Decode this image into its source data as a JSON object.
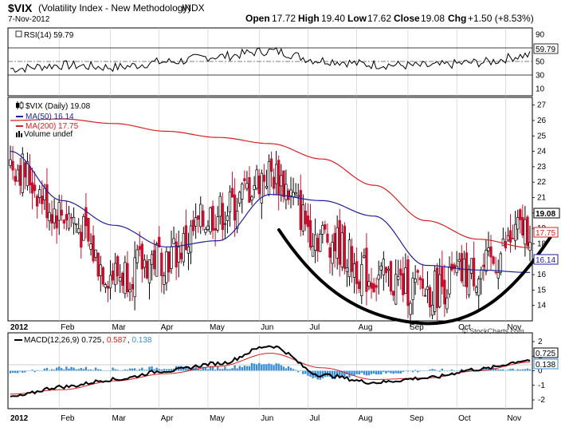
{
  "header": {
    "symbol": "$VIX",
    "name": "(Volatility Index - New Methodology)",
    "exchange": "INDX",
    "date": "7-Nov-2012",
    "quote": {
      "open_label": "Open",
      "open": "17.72",
      "high_label": "High",
      "high": "19.40",
      "low_label": "Low",
      "low": "17.62",
      "close_label": "Close",
      "close": "19.08",
      "chg_label": "Chg",
      "chg": "+1.50 (+8.53%)"
    },
    "copyright": "© StockCharts.com"
  },
  "rsi_panel": {
    "label": "RSI(14) 59.79",
    "ticks": [
      "90",
      "70",
      "50",
      "30",
      "10"
    ],
    "current": "59.79"
  },
  "price_panel": {
    "legend": [
      {
        "text": "$VIX (Daily) 19.08",
        "color": "#000000",
        "icon": "candlestick-icon"
      },
      {
        "text": "MA(50) 16.14",
        "color": "#1f1f9f"
      },
      {
        "text": "MA(200) 17.75",
        "color": "#d42020"
      },
      {
        "text": "Volume undef",
        "color": "#000000",
        "icon": "bar-icon"
      }
    ],
    "ticks": [
      "27",
      "26",
      "25",
      "24",
      "23",
      "22",
      "21",
      "20",
      "19",
      "18",
      "17",
      "16",
      "15",
      "14"
    ],
    "badges": {
      "close": "19.08",
      "ma200": "17.75",
      "ma50": "16.14"
    }
  },
  "macd_panel": {
    "label_prefix": "MACD(12,26,9)",
    "macd_value": "0.725",
    "signal_value": "0.587",
    "hist_value": "0.138",
    "ticks": [
      "2",
      "1",
      "0",
      "-1",
      "-2"
    ],
    "badges": {
      "macd": "0.725",
      "hist": "0.138"
    }
  },
  "x_axis": {
    "labels": [
      "2012",
      "Feb",
      "Mar",
      "Apr",
      "May",
      "Jun",
      "Jul",
      "Aug",
      "Sep",
      "Oct",
      "Nov"
    ]
  },
  "colors": {
    "up_candle": "#000000",
    "down_candle": "#c8102e",
    "ma50": "#1f1f9f",
    "ma200": "#d42020",
    "macd": "#000000",
    "signal": "#d42020",
    "hist": "#3b8fd6",
    "annotation": "#000000"
  },
  "chart_data": {
    "type": "candlestick",
    "symbol": "$VIX",
    "x": [
      "2012-01",
      "2012-02",
      "2012-03",
      "2012-04",
      "2012-05",
      "2012-06",
      "2012-07",
      "2012-08",
      "2012-09",
      "2012-10",
      "2012-11"
    ],
    "close": [
      23.2,
      20.0,
      16.0,
      17.2,
      20.0,
      22.5,
      18.5,
      15.8,
      15.0,
      16.2,
      19.08
    ],
    "ma50": [
      24.0,
      20.8,
      19.2,
      17.8,
      18.2,
      21.2,
      20.8,
      19.8,
      16.6,
      16.3,
      16.14
    ],
    "ma200": [
      26.0,
      26.1,
      25.8,
      25.3,
      24.9,
      24.5,
      23.5,
      21.8,
      19.5,
      18.3,
      17.75
    ],
    "rsi": [
      40,
      45,
      42,
      50,
      58,
      66,
      52,
      46,
      44,
      49,
      59.79
    ],
    "macd": [
      -1.8,
      -1.1,
      -0.6,
      0.0,
      0.5,
      1.7,
      -0.3,
      -0.8,
      -0.5,
      0.1,
      0.725
    ],
    "signal": [
      -1.6,
      -1.3,
      -0.7,
      -0.2,
      0.3,
      1.2,
      0.2,
      -0.6,
      -0.5,
      0.0,
      0.587
    ],
    "ylim_price": [
      13,
      27.5
    ],
    "ylim_rsi": [
      0,
      100
    ],
    "ylim_macd": [
      -2.6,
      2.6
    ],
    "annotation": "rounded-bottom arc drawn from June to November"
  }
}
